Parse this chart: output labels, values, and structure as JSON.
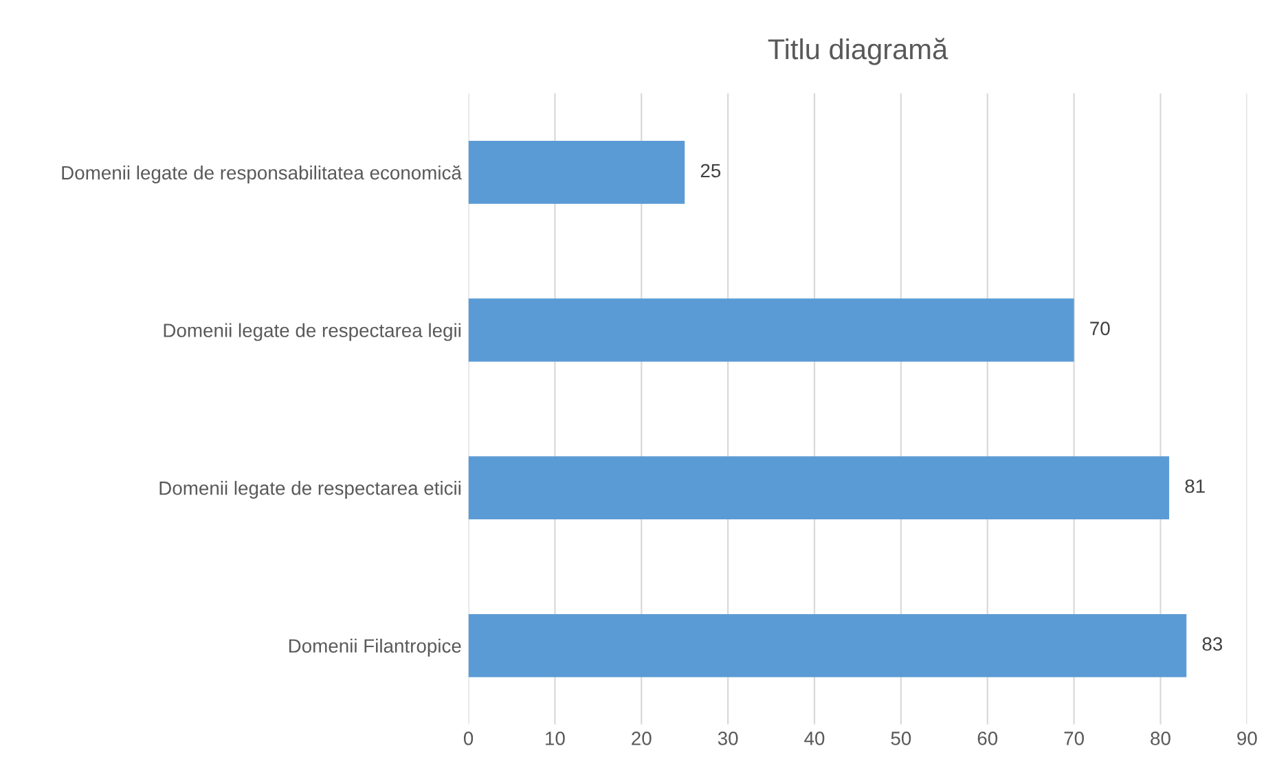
{
  "chart_data": {
    "type": "bar",
    "orientation": "horizontal",
    "title": "Titlu diagramă",
    "categories": [
      "Domenii legate de responsabilitatea economică",
      "Domenii legate de respectarea legii",
      "Domenii legate de respectarea eticii",
      "Domenii Filantropice"
    ],
    "values": [
      25,
      70,
      81,
      83
    ],
    "color": "#5b9bd5",
    "data_labels": true,
    "xlim": [
      0,
      90
    ],
    "xticks": [
      0,
      10,
      20,
      30,
      40,
      50,
      60,
      70,
      80,
      90
    ],
    "grid": "x",
    "legend": false
  }
}
